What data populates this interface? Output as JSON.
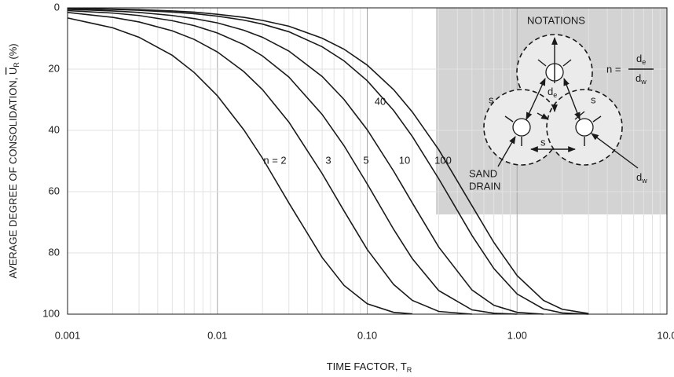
{
  "chart_data": {
    "type": "line",
    "x_label": {
      "text": "TIME FACTOR, T",
      "sub": "R"
    },
    "y_label": {
      "text": "AVERAGE DEGREE OF CONSOLIDATION, ",
      "symbol": "U",
      "sub": "R",
      "unit": " (%)"
    },
    "x_log": true,
    "y_reversed": true,
    "grid": true,
    "xlim": [
      0.001,
      10
    ],
    "ylim": [
      0,
      100
    ],
    "xticks": [
      0.001,
      0.01,
      {
        "value": 0.1,
        "label": "0.10"
      },
      {
        "value": 1,
        "label": "1.00"
      },
      {
        "value": 10,
        "label": "10.0"
      }
    ],
    "yticks": [
      0,
      20,
      40,
      60,
      80,
      100
    ],
    "x": [
      0.001,
      0.002,
      0.003,
      0.005,
      0.007,
      0.01,
      0.015,
      0.02,
      0.03,
      0.05,
      0.07,
      0.1,
      0.15,
      0.2,
      0.3,
      0.5,
      0.7,
      1,
      1.5,
      2,
      3
    ],
    "series": [
      {
        "name": "n = 2",
        "color": "#1a1a1a",
        "values": [
          3.3,
          6.5,
          9.6,
          15.5,
          21.1,
          28.7,
          39.8,
          49.1,
          63.7,
          81.5,
          90.6,
          96.6,
          99.4,
          99.9,
          null,
          null,
          null,
          null,
          null,
          null,
          null
        ]
      },
      {
        "name": "3",
        "color": "#1a1a1a",
        "values": [
          1.5,
          3.1,
          4.6,
          7.5,
          10.3,
          14.4,
          20.8,
          26.7,
          37.3,
          54.1,
          66.3,
          78.9,
          90.3,
          95.5,
          99.1,
          100,
          null,
          null,
          null,
          null,
          null
        ]
      },
      {
        "name": "5",
        "color": "#1a1a1a",
        "values": [
          0.9,
          1.7,
          2.5,
          4.2,
          5.8,
          8.2,
          12.0,
          15.7,
          22.6,
          34.8,
          45.0,
          57.5,
          72.3,
          81.9,
          92.3,
          98.6,
          99.7,
          100,
          null,
          null,
          null
        ]
      },
      {
        "name": "10",
        "color": "#1a1a1a",
        "values": [
          0.5,
          1.0,
          1.5,
          2.5,
          3.5,
          4.9,
          7.3,
          9.6,
          14.1,
          22.4,
          29.9,
          39.8,
          53.3,
          63.7,
          78.1,
          92.1,
          97.1,
          99.4,
          100,
          null,
          null
        ]
      },
      {
        "name": "40",
        "color": "#1a1a1a",
        "values": [
          0.3,
          0.5,
          0.8,
          1.4,
          1.9,
          2.7,
          4.0,
          5.3,
          7.8,
          12.7,
          17.3,
          23.8,
          33.5,
          42.0,
          55.8,
          74.3,
          85.1,
          93.4,
          98.3,
          99.6,
          100
        ]
      },
      {
        "name": "100",
        "color": "#1a1a1a",
        "values": [
          0.2,
          0.4,
          0.6,
          1.0,
          1.4,
          2.1,
          3.1,
          4.1,
          6.0,
          9.9,
          13.5,
          18.7,
          26.7,
          34.0,
          46.3,
          64.6,
          76.6,
          87.4,
          95.5,
          98.4,
          99.8
        ]
      }
    ],
    "inset": {
      "title": "NOTATIONS",
      "n_eq": "n =",
      "ratio_top": [
        "d",
        "e"
      ],
      "ratio_bottom": [
        "d",
        "w"
      ],
      "spacing_left": "s",
      "spacing_right": "s",
      "spacing_bottom": "s",
      "influence_diameter": [
        "d",
        "e"
      ],
      "drain_label": [
        "SAND",
        "DRAIN"
      ],
      "drain_diameter": [
        "d",
        "w"
      ]
    }
  }
}
